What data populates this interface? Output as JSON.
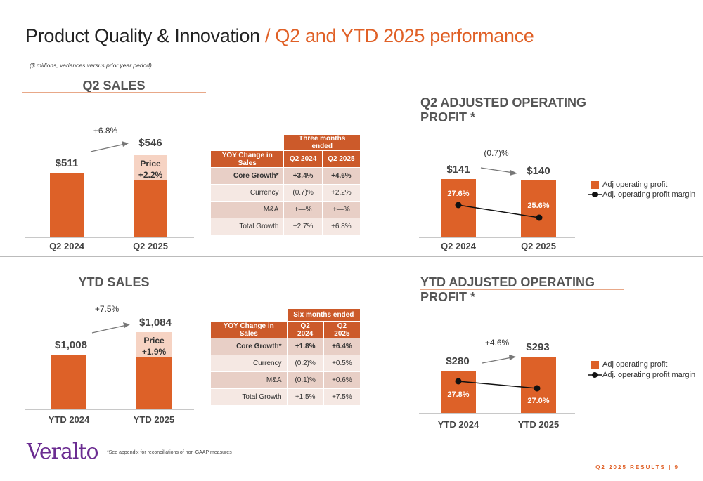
{
  "header": {
    "title_main": "Product Quality & Innovation",
    "title_accent": "/ Q2 and YTD 2025 performance",
    "subtitle": "($ millions, variances versus prior year period)"
  },
  "q2_sales": {
    "title": "Q2 SALES",
    "growth_label": "+6.8%",
    "bars": [
      {
        "category": "Q2 2024",
        "value_label": "$511",
        "value": 511
      },
      {
        "category": "Q2 2025",
        "value_label": "$546",
        "value": 546
      }
    ],
    "price_label": "Price",
    "price_value": "+2.2%"
  },
  "q2_table": {
    "period_header": "Three months ended",
    "col_label": "YOY Change in Sales",
    "col_2024": "Q2 2024",
    "col_2025": "Q2 2025",
    "rows": [
      {
        "label": "Core Growth*",
        "v2024": "+3.4%",
        "v2025": "+4.6%"
      },
      {
        "label": "Currency",
        "v2024": "(0.7)%",
        "v2025": "+2.2%"
      },
      {
        "label": "M&A",
        "v2024": "+—%",
        "v2025": "+—%"
      },
      {
        "label": "Total Growth",
        "v2024": "+2.7%",
        "v2025": "+6.8%"
      }
    ]
  },
  "q2_profit": {
    "title": "Q2 ADJUSTED OPERATING PROFIT *",
    "growth_label": "(0.7)%",
    "bars": [
      {
        "category": "Q2 2024",
        "value_label": "$141",
        "value": 141,
        "margin_label": "27.6%",
        "margin": 27.6
      },
      {
        "category": "Q2 2025",
        "value_label": "$140",
        "value": 140,
        "margin_label": "25.6%",
        "margin": 25.6
      }
    ],
    "legend_bar": "Adj operating profit",
    "legend_line": "Adj. operating profit margin"
  },
  "ytd_sales": {
    "title": "YTD SALES",
    "growth_label": "+7.5%",
    "bars": [
      {
        "category": "YTD 2024",
        "value_label": "$1,008",
        "value": 1008
      },
      {
        "category": "YTD 2025",
        "value_label": "$1,084",
        "value": 1084
      }
    ],
    "price_label": "Price",
    "price_value": "+1.9%"
  },
  "ytd_table": {
    "period_header": "Six months ended",
    "col_label": "YOY Change in Sales",
    "col_2024": "Q2 2024",
    "col_2025": "Q2 2025",
    "rows": [
      {
        "label": "Core Growth*",
        "v2024": "+1.8%",
        "v2025": "+6.4%"
      },
      {
        "label": "Currency",
        "v2024": "(0.2)%",
        "v2025": "+0.5%"
      },
      {
        "label": "M&A",
        "v2024": "(0.1)%",
        "v2025": "+0.6%"
      },
      {
        "label": "Total Growth",
        "v2024": "+1.5%",
        "v2025": "+7.5%"
      }
    ]
  },
  "ytd_profit": {
    "title": "YTD ADJUSTED OPERATING PROFIT *",
    "growth_label": "+4.6%",
    "bars": [
      {
        "category": "YTD 2024",
        "value_label": "$280",
        "value": 280,
        "margin_label": "27.8%",
        "margin": 27.8
      },
      {
        "category": "YTD 2025",
        "value_label": "$293",
        "value": 293,
        "margin_label": "27.0%",
        "margin": 27.0
      }
    ],
    "legend_bar": "Adj operating profit",
    "legend_line": "Adj. operating profit margin"
  },
  "footer": {
    "logo": "Veralto",
    "footnote": "*See appendix for reconciliations of non-GAAP measures",
    "page": "Q2 2025 RESULTS | 9"
  },
  "colors": {
    "accent": "#e06026",
    "bar": "#dd6128",
    "price_box": "#f6d3c3",
    "table_header": "#cc5a2a",
    "logo": "#6b2c91"
  }
}
